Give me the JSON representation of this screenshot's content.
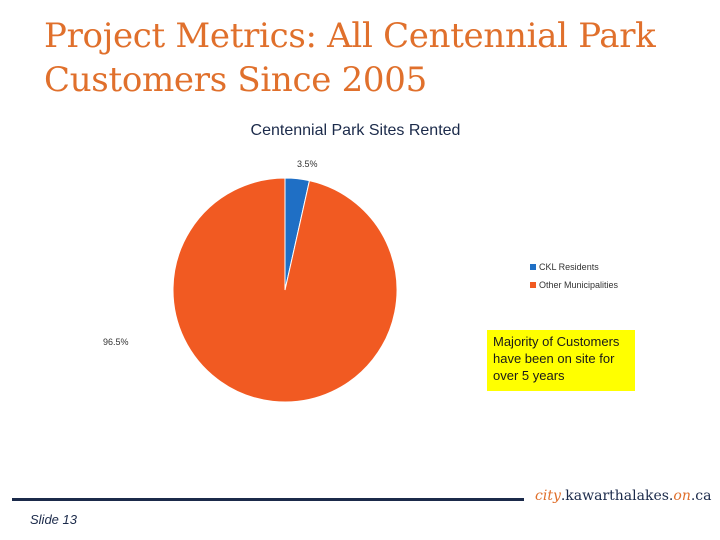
{
  "slide": {
    "title": "Project Metrics:  All Centennial Park Customers Since 2005",
    "slide_number": "Slide 13",
    "callout": "Majority of Customers have been on site for over 5 years",
    "url": {
      "part1": "city",
      "part2": ".kawarthalakes.",
      "part3": "on",
      "part4": ".ca"
    }
  },
  "colors": {
    "title": "#e0702c",
    "navy": "#1b2a4a",
    "callout_bg": "#ffff00"
  },
  "chart_data": {
    "type": "pie",
    "title": "Centennial Park Sites Rented",
    "legend_position": "right",
    "series": [
      {
        "name": "CKL Residents",
        "value": 3.5,
        "label": "3.5%",
        "color": "#1f6fc5"
      },
      {
        "name": "Other Municipalities",
        "value": 96.5,
        "label": "96.5%",
        "color": "#f15a22"
      }
    ]
  }
}
